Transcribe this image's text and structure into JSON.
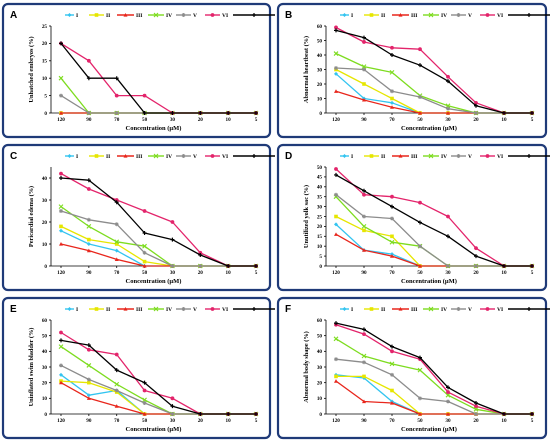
{
  "figure": {
    "legend_position": "top",
    "x_categories": [
      "120",
      "90",
      "70",
      "50",
      "30",
      "20",
      "10",
      "5"
    ]
  },
  "series_styles": [
    {
      "name": "I",
      "color": "#33c4f0",
      "marker": "diamond"
    },
    {
      "name": "II",
      "color": "#e6e600",
      "marker": "square"
    },
    {
      "name": "III",
      "color": "#e8261c",
      "marker": "triangle"
    },
    {
      "name": "IV",
      "color": "#7ddc1f",
      "marker": "x"
    },
    {
      "name": "V",
      "color": "#8c8c8c",
      "marker": "star"
    },
    {
      "name": "VI",
      "color": "#e3246b",
      "marker": "circle"
    },
    {
      "name": "Pemetrexed",
      "color": "#000000",
      "marker": "plus"
    }
  ],
  "chart_data": [
    {
      "panel": "A",
      "type": "line",
      "ylabel": "Unhatched embryos (%)",
      "xlabel": "Concentration (µM)",
      "ylim": [
        0,
        25
      ],
      "yticks": [
        0,
        5,
        10,
        15,
        20,
        25
      ],
      "categories": [
        "120",
        "90",
        "70",
        "50",
        "30",
        "20",
        "10",
        "5"
      ],
      "series": [
        {
          "name": "I",
          "values": [
            0,
            0,
            0,
            0,
            0,
            0,
            0,
            0
          ]
        },
        {
          "name": "II",
          "values": [
            0,
            0,
            0,
            0,
            0,
            0,
            0,
            0
          ]
        },
        {
          "name": "III",
          "values": [
            0,
            0,
            0,
            0,
            0,
            0,
            0,
            0
          ]
        },
        {
          "name": "IV",
          "values": [
            10,
            0,
            0,
            0,
            0,
            0,
            0,
            0
          ]
        },
        {
          "name": "V",
          "values": [
            5,
            0,
            0,
            0,
            0,
            0,
            0,
            0
          ]
        },
        {
          "name": "VI",
          "values": [
            20,
            15,
            5,
            5,
            0,
            0,
            0,
            0
          ]
        },
        {
          "name": "Pemetrexed",
          "values": [
            20,
            10,
            10,
            0,
            0,
            0,
            0,
            0
          ]
        }
      ]
    },
    {
      "panel": "B",
      "type": "line",
      "ylabel": "Abnormal heartbeat (%)",
      "xlabel": "Concentration (µM)",
      "ylim": [
        0,
        60
      ],
      "yticks": [
        0,
        10,
        20,
        30,
        40,
        50,
        60
      ],
      "categories": [
        "120",
        "90",
        "70",
        "50",
        "30",
        "20",
        "10",
        "5"
      ],
      "series": [
        {
          "name": "I",
          "values": [
            27,
            10,
            7,
            0,
            0,
            0,
            0,
            0
          ]
        },
        {
          "name": "II",
          "values": [
            30,
            20,
            10,
            0,
            0,
            0,
            0,
            0
          ]
        },
        {
          "name": "III",
          "values": [
            15,
            9,
            4,
            0,
            0,
            0,
            0,
            0
          ]
        },
        {
          "name": "IV",
          "values": [
            41,
            32,
            28,
            12,
            5,
            0,
            0,
            0
          ]
        },
        {
          "name": "V",
          "values": [
            31,
            30,
            15,
            11,
            3,
            0,
            0,
            0
          ]
        },
        {
          "name": "VI",
          "values": [
            59,
            49,
            45,
            44,
            25,
            7,
            0,
            0
          ]
        },
        {
          "name": "Pemetrexed",
          "values": [
            57,
            52,
            40,
            33,
            22,
            5,
            0,
            0
          ]
        }
      ]
    },
    {
      "panel": "C",
      "type": "line",
      "ylabel": "Pericardial edema (%)",
      "xlabel": "Concentration (µM)",
      "ylim": [
        0,
        45
      ],
      "yticks": [
        0,
        10,
        20,
        30,
        40
      ],
      "categories": [
        "120",
        "90",
        "70",
        "50",
        "30",
        "20",
        "10",
        "5"
      ],
      "series": [
        {
          "name": "I",
          "values": [
            16,
            10,
            7,
            0,
            0,
            0,
            0,
            0
          ]
        },
        {
          "name": "II",
          "values": [
            18,
            12,
            10,
            2,
            0,
            0,
            0,
            0
          ]
        },
        {
          "name": "III",
          "values": [
            10,
            7,
            3,
            0,
            0,
            0,
            0,
            0
          ]
        },
        {
          "name": "IV",
          "values": [
            27,
            18,
            11,
            9,
            0,
            0,
            0,
            0
          ]
        },
        {
          "name": "V",
          "values": [
            25,
            21,
            19,
            6,
            0,
            0,
            0,
            0
          ]
        },
        {
          "name": "VI",
          "values": [
            42,
            35,
            30,
            25,
            20,
            6,
            0,
            0
          ]
        },
        {
          "name": "Pemetrexed",
          "values": [
            40,
            39,
            29,
            15,
            12,
            5,
            0,
            0
          ]
        }
      ]
    },
    {
      "panel": "D",
      "type": "line",
      "ylabel": "Unutilized yolk sac (%)",
      "xlabel": "Concentration (µM)",
      "ylim": [
        0,
        50
      ],
      "yticks": [
        0,
        5,
        10,
        15,
        20,
        25,
        30,
        35,
        40,
        45,
        50
      ],
      "categories": [
        "120",
        "90",
        "70",
        "50",
        "30",
        "20",
        "10",
        "5"
      ],
      "series": [
        {
          "name": "I",
          "values": [
            21,
            8,
            6,
            0,
            0,
            0,
            0,
            0
          ]
        },
        {
          "name": "II",
          "values": [
            25,
            18,
            15,
            0,
            0,
            0,
            0,
            0
          ]
        },
        {
          "name": "III",
          "values": [
            16,
            8,
            5,
            0,
            0,
            0,
            0,
            0
          ]
        },
        {
          "name": "IV",
          "values": [
            35,
            20,
            12,
            10,
            0,
            0,
            0,
            0
          ]
        },
        {
          "name": "V",
          "values": [
            36,
            25,
            24,
            10,
            0,
            0,
            0,
            0
          ]
        },
        {
          "name": "VI",
          "values": [
            49,
            36,
            35,
            32,
            25,
            9,
            0,
            0
          ]
        },
        {
          "name": "Pemetrexed",
          "values": [
            46,
            38,
            30,
            22,
            15,
            5,
            0,
            0
          ]
        }
      ]
    },
    {
      "panel": "E",
      "type": "line",
      "ylabel": "Uninflated swim bladder (%)",
      "xlabel": "Concentration (µM)",
      "ylim": [
        0,
        60
      ],
      "yticks": [
        0,
        10,
        20,
        30,
        40,
        50,
        60
      ],
      "categories": [
        "120",
        "90",
        "70",
        "50",
        "30",
        "20",
        "10",
        "5"
      ],
      "series": [
        {
          "name": "I",
          "values": [
            25,
            12,
            15,
            0,
            0,
            0,
            0,
            0
          ]
        },
        {
          "name": "II",
          "values": [
            21,
            20,
            14,
            0,
            0,
            0,
            0,
            0
          ]
        },
        {
          "name": "III",
          "values": [
            20,
            10,
            5,
            0,
            0,
            0,
            0,
            0
          ]
        },
        {
          "name": "IV",
          "values": [
            43,
            31,
            19,
            9,
            0,
            0,
            0,
            0
          ]
        },
        {
          "name": "V",
          "values": [
            31,
            22,
            15,
            7,
            0,
            0,
            0,
            0
          ]
        },
        {
          "name": "VI",
          "values": [
            52,
            41,
            38,
            15,
            10,
            0,
            0,
            0
          ]
        },
        {
          "name": "Pemetrexed",
          "values": [
            47,
            44,
            28,
            20,
            5,
            0,
            0,
            0
          ]
        }
      ]
    },
    {
      "panel": "F",
      "type": "line",
      "ylabel": "Abnormal body shape (%)",
      "xlabel": "Concentration (µM)",
      "ylim": [
        0,
        60
      ],
      "yticks": [
        0,
        10,
        20,
        30,
        40,
        50,
        60
      ],
      "categories": [
        "120",
        "90",
        "70",
        "50",
        "30",
        "20",
        "10",
        "5"
      ],
      "series": [
        {
          "name": "I",
          "values": [
            25,
            23,
            8,
            0,
            0,
            0,
            0,
            0
          ]
        },
        {
          "name": "II",
          "values": [
            24,
            24,
            15,
            0,
            0,
            0,
            0,
            0
          ]
        },
        {
          "name": "III",
          "values": [
            21,
            8,
            7,
            0,
            0,
            0,
            0,
            0
          ]
        },
        {
          "name": "IV",
          "values": [
            48,
            37,
            32,
            28,
            12,
            3,
            0,
            0
          ]
        },
        {
          "name": "V",
          "values": [
            35,
            33,
            25,
            10,
            8,
            0,
            0,
            0
          ]
        },
        {
          "name": "VI",
          "values": [
            57,
            51,
            40,
            35,
            14,
            5,
            0,
            0
          ]
        },
        {
          "name": "Pemetrexed",
          "values": [
            58,
            54,
            43,
            36,
            17,
            7,
            0,
            0
          ]
        }
      ]
    }
  ]
}
